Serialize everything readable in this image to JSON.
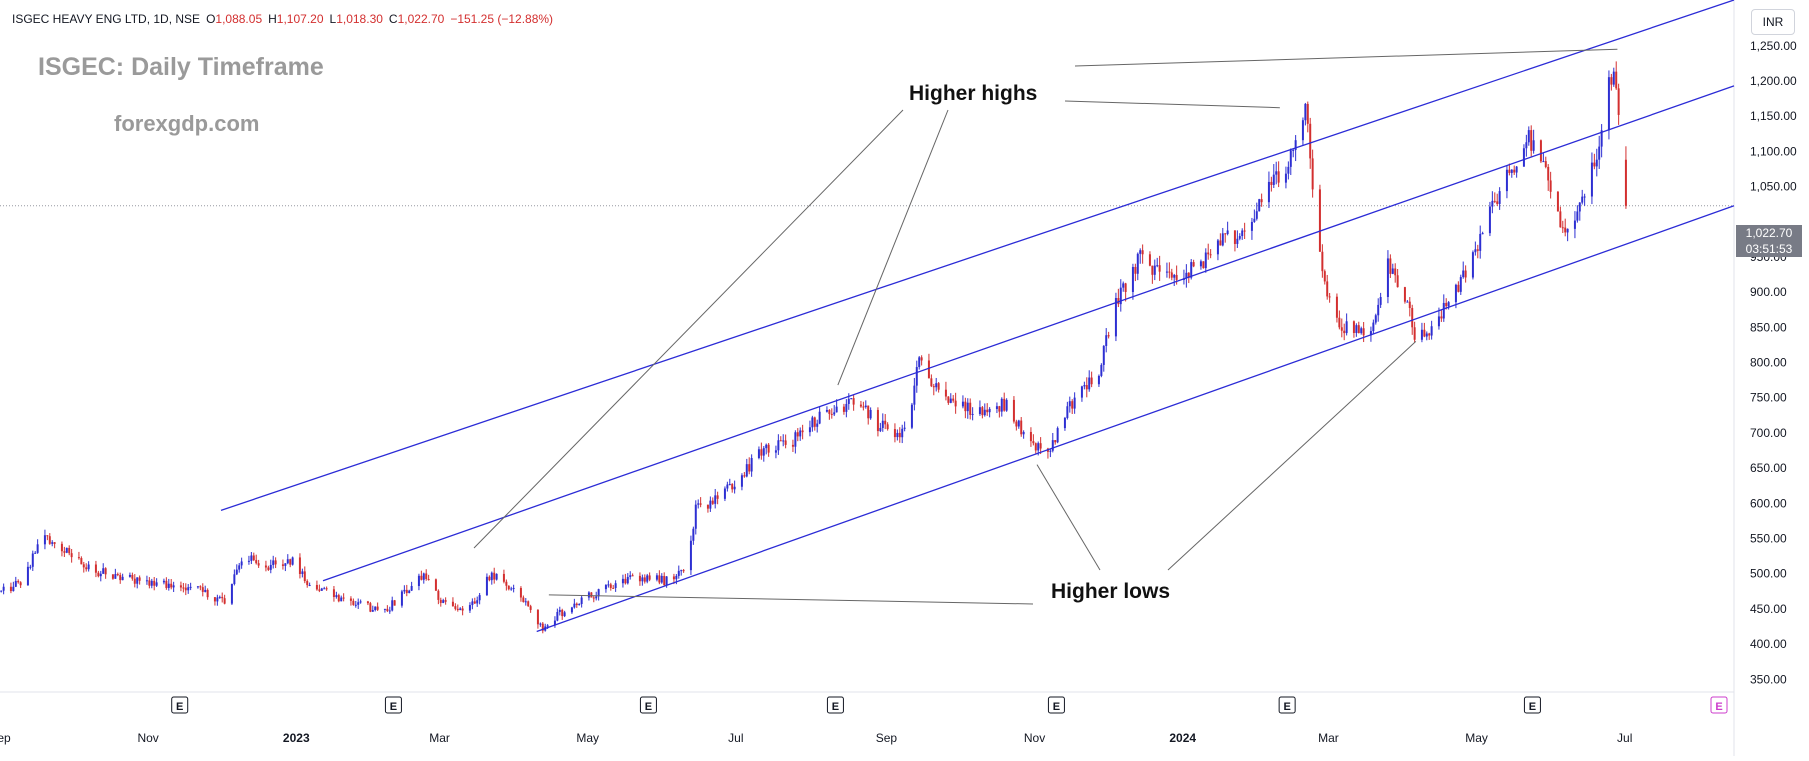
{
  "header": {
    "symbol": "ISGEC HEAVY ENG LTD, 1D, NSE",
    "open_label": "O",
    "open": "1,088.05",
    "high_label": "H",
    "high": "1,107.20",
    "low_label": "L",
    "low": "1,018.30",
    "close_label": "C",
    "close": "1,022.70",
    "change": "−151.25 (−12.88%)"
  },
  "watermark": {
    "title": "ISGEC: Daily Timeframe",
    "site": "forexgdp.com"
  },
  "annotations": {
    "higher_highs": "Higher highs",
    "higher_lows": "Higher lows"
  },
  "currency": "INR",
  "last_price": {
    "value": "1,022.70",
    "countdown": "03:51:53"
  },
  "earnings_marker": "E",
  "colors": {
    "up": "#2d2fd2",
    "down": "#d32f2f",
    "channel": "#2b2bd6",
    "annotation_line": "#666666",
    "price_tag": "#787b86",
    "earnings_future": "#cc3ccc"
  },
  "chart_data": {
    "type": "candlestick",
    "title": "ISGEC HEAVY ENG LTD, 1D, NSE",
    "y_axis": {
      "unit": "INR",
      "ticks": [
        1250,
        1200,
        1150,
        1100,
        1050,
        1000,
        950,
        900,
        850,
        800,
        750,
        700,
        650,
        600,
        550,
        500,
        450,
        400,
        350
      ],
      "tick_labels": [
        "1,250.00",
        "1,200.00",
        "1,150.00",
        "1,100.00",
        "1,050.00",
        "",
        "950.00",
        "900.00",
        "850.00",
        "800.00",
        "750.00",
        "700.00",
        "650.00",
        "600.00",
        "550.00",
        "500.00",
        "450.00",
        "400.00",
        "350.00"
      ],
      "range": [
        332,
        1315
      ]
    },
    "x_axis": {
      "range": [
        "2022-09-01",
        "2024-08-15"
      ],
      "ticks": [
        {
          "date": "2022-09-01",
          "label": "Sep",
          "bold": false
        },
        {
          "date": "2022-11-01",
          "label": "Nov",
          "bold": false
        },
        {
          "date": "2023-01-01",
          "label": "2023",
          "bold": true
        },
        {
          "date": "2023-03-01",
          "label": "Mar",
          "bold": false
        },
        {
          "date": "2023-05-01",
          "label": "May",
          "bold": false
        },
        {
          "date": "2023-07-01",
          "label": "Jul",
          "bold": false
        },
        {
          "date": "2023-09-01",
          "label": "Sep",
          "bold": false
        },
        {
          "date": "2023-11-01",
          "label": "Nov",
          "bold": false
        },
        {
          "date": "2024-01-01",
          "label": "2024",
          "bold": true
        },
        {
          "date": "2024-03-01",
          "label": "Mar",
          "bold": false
        },
        {
          "date": "2024-05-01",
          "label": "May",
          "bold": false
        },
        {
          "date": "2024-07-01",
          "label": "Jul",
          "bold": false
        }
      ]
    },
    "price_path": [
      [
        "2022-09-01",
        475
      ],
      [
        "2022-09-10",
        490
      ],
      [
        "2022-09-18",
        555
      ],
      [
        "2022-09-26",
        535
      ],
      [
        "2022-10-08",
        505
      ],
      [
        "2022-10-22",
        495
      ],
      [
        "2022-11-05",
        485
      ],
      [
        "2022-11-20",
        480
      ],
      [
        "2022-12-02",
        460
      ],
      [
        "2022-12-10",
        525
      ],
      [
        "2022-12-20",
        510
      ],
      [
        "2022-12-30",
        520
      ],
      [
        "2023-01-06",
        480
      ],
      [
        "2023-01-20",
        465
      ],
      [
        "2023-02-05",
        445
      ],
      [
        "2023-02-15",
        475
      ],
      [
        "2023-02-22",
        500
      ],
      [
        "2023-03-01",
        460
      ],
      [
        "2023-03-12",
        445
      ],
      [
        "2023-03-22",
        500
      ],
      [
        "2023-04-03",
        465
      ],
      [
        "2023-04-12",
        425
      ],
      [
        "2023-04-22",
        450
      ],
      [
        "2023-05-05",
        475
      ],
      [
        "2023-05-20",
        495
      ],
      [
        "2023-06-02",
        490
      ],
      [
        "2023-06-10",
        510
      ],
      [
        "2023-06-14",
        590
      ],
      [
        "2023-06-26",
        615
      ],
      [
        "2023-07-10",
        670
      ],
      [
        "2023-07-24",
        690
      ],
      [
        "2023-08-07",
        730
      ],
      [
        "2023-08-20",
        745
      ],
      [
        "2023-08-28",
        710
      ],
      [
        "2023-09-08",
        700
      ],
      [
        "2023-09-14",
        800
      ],
      [
        "2023-09-24",
        750
      ],
      [
        "2023-10-08",
        730
      ],
      [
        "2023-10-20",
        740
      ],
      [
        "2023-10-31",
        680
      ],
      [
        "2023-11-07",
        675
      ],
      [
        "2023-11-15",
        740
      ],
      [
        "2023-11-27",
        790
      ],
      [
        "2023-12-04",
        880
      ],
      [
        "2023-12-14",
        950
      ],
      [
        "2023-12-24",
        920
      ],
      [
        "2024-01-04",
        930
      ],
      [
        "2024-01-16",
        970
      ],
      [
        "2024-01-26",
        990
      ],
      [
        "2024-02-04",
        1040
      ],
      [
        "2024-02-12",
        1080
      ],
      [
        "2024-02-20",
        1160
      ],
      [
        "2024-02-26",
        950
      ],
      [
        "2024-03-02",
        870
      ],
      [
        "2024-03-10",
        840
      ],
      [
        "2024-03-18",
        850
      ],
      [
        "2024-03-25",
        940
      ],
      [
        "2024-04-02",
        880
      ],
      [
        "2024-04-06",
        830
      ],
      [
        "2024-04-12",
        850
      ],
      [
        "2024-04-20",
        890
      ],
      [
        "2024-04-30",
        960
      ],
      [
        "2024-05-10",
        1040
      ],
      [
        "2024-05-22",
        1120
      ],
      [
        "2024-05-30",
        1060
      ],
      [
        "2024-06-06",
        980
      ],
      [
        "2024-06-14",
        1050
      ],
      [
        "2024-06-20",
        1110
      ],
      [
        "2024-06-26",
        1230
      ],
      [
        "2024-07-01",
        1022.7
      ]
    ],
    "channel_lines": [
      {
        "name": "upper",
        "points": [
          [
            "2022-12-01",
            590
          ],
          [
            "2024-08-15",
            1315
          ]
        ]
      },
      {
        "name": "middle",
        "points": [
          [
            "2023-01-12",
            490
          ],
          [
            "2024-08-15",
            1193
          ]
        ]
      },
      {
        "name": "lower",
        "points": [
          [
            "2023-04-10",
            418
          ],
          [
            "2024-08-15",
            1022.7
          ]
        ]
      }
    ],
    "annotation_pointers": {
      "higher_highs": [
        [
          "2023-08-12",
          768
        ],
        [
          "2024-02-10",
          1162
        ],
        [
          "2024-06-28",
          1245
        ]
      ],
      "higher_lows": [
        [
          "2023-04-05",
          430
        ],
        [
          "2023-04-15",
          470
        ],
        [
          "2023-11-02",
          655
        ],
        [
          "2024-04-06",
          830
        ]
      ]
    },
    "last_price": 1022.7,
    "earnings_dates": [
      "2022-11-14",
      "2023-02-10",
      "2023-05-26",
      "2023-08-11",
      "2023-11-10",
      "2024-02-13",
      "2024-05-24",
      "2024-08-10"
    ]
  }
}
